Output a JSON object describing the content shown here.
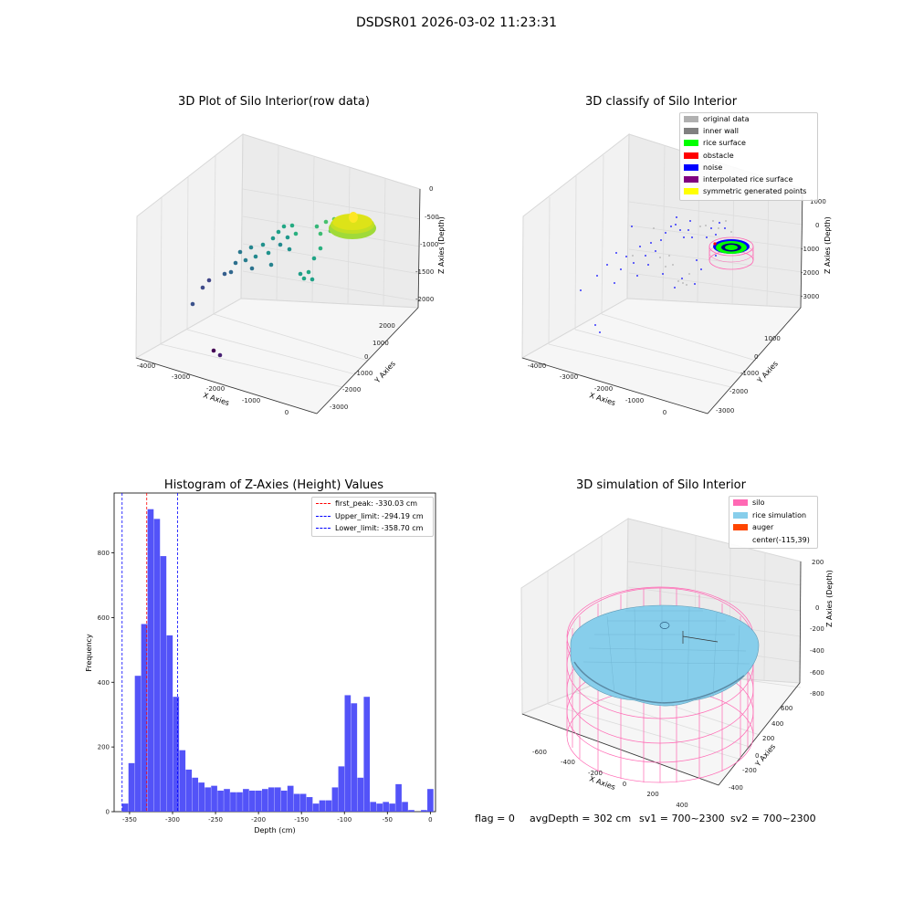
{
  "figure_title": "DSDSR01 2026-03-02 11:23:31",
  "status_line": {
    "flag": "flag = 0",
    "avg_depth": "avgDepth = 302 cm",
    "sv1": "sv1 = 700~2300",
    "sv2": "sv2 = 700~2300"
  },
  "chart_data": [
    {
      "type": "scatter",
      "projection": "3d",
      "title": "3D Plot of Silo Interior(row data)",
      "xlabel": "X Axies",
      "ylabel": "Y Axies",
      "zlabel": "Z Axies (Depth)",
      "xticks": [
        "-4000",
        "-3000",
        "-2000",
        "-1000",
        "0"
      ],
      "yticks": [
        "2000",
        "1000",
        "0",
        "-1000",
        "-2000",
        "-3000"
      ],
      "zticks": [
        "0",
        "-500",
        "-1000",
        "-1500",
        "-2000"
      ],
      "colormap": "viridis",
      "grid": true
    },
    {
      "type": "scatter",
      "projection": "3d",
      "title": "3D classify of Silo Interior",
      "xlabel": "X Axies",
      "ylabel": "Y Axies",
      "zlabel": "Z Axies (Depth)",
      "xticks": [
        "-4000",
        "-3000",
        "-2000",
        "-1000",
        "0"
      ],
      "yticks": [
        "1000",
        "0",
        "-1000",
        "-2000",
        "-3000"
      ],
      "zticks": [
        "1000",
        "0",
        "-1000",
        "-2000",
        "-3000"
      ],
      "legend_position": "top-right",
      "legend": [
        {
          "label": "original data",
          "color": "#b0b0b0"
        },
        {
          "label": "inner wall",
          "color": "#808080"
        },
        {
          "label": "rice surface",
          "color": "#00ff00"
        },
        {
          "label": "obstacle",
          "color": "#ff0000"
        },
        {
          "label": "noise",
          "color": "#0000ff"
        },
        {
          "label": "interpolated rice surface",
          "color": "#800080"
        },
        {
          "label": "symmetric generated points",
          "color": "#ffff00"
        }
      ],
      "grid": true
    },
    {
      "type": "bar",
      "subtype": "histogram",
      "title": "Histogram of Z-Axies (Height) Values",
      "xlabel": "Depth (cm)",
      "ylabel": "Frequency",
      "xlim": [
        -368,
        6
      ],
      "ylim": [
        0,
        985
      ],
      "xticks": [
        -350,
        -300,
        -250,
        -200,
        -150,
        -100,
        -50,
        0
      ],
      "yticks": [
        0,
        200,
        400,
        600,
        800
      ],
      "bar_color": "#4a4af8",
      "bin_edges": [
        -358.7,
        -351.3,
        -343.9,
        -336.5,
        -329.1,
        -321.7,
        -314.3,
        -306.9,
        -299.5,
        -292.1,
        -284.7,
        -277.3,
        -269.9,
        -262.5,
        -255.1,
        -247.7,
        -240.3,
        -232.9,
        -225.5,
        -218.1,
        -210.7,
        -203.3,
        -195.9,
        -188.5,
        -181.1,
        -173.7,
        -166.3,
        -158.9,
        -151.5,
        -144.1,
        -136.7,
        -129.3,
        -121.9,
        -114.5,
        -107.1,
        -99.7,
        -92.3,
        -84.9,
        -77.5,
        -70.1,
        -62.7,
        -55.3,
        -47.9,
        -40.5,
        -33.1,
        -25.7,
        -18.3,
        -10.9,
        -3.5,
        3.9
      ],
      "counts": [
        25,
        150,
        420,
        580,
        935,
        905,
        790,
        545,
        355,
        190,
        130,
        105,
        90,
        75,
        80,
        65,
        70,
        60,
        60,
        70,
        65,
        65,
        70,
        75,
        75,
        65,
        80,
        55,
        55,
        45,
        25,
        35,
        35,
        75,
        140,
        360,
        335,
        105,
        355,
        30,
        25,
        30,
        25,
        85,
        30,
        5,
        0,
        5,
        70
      ],
      "reference_lines": [
        {
          "label": "first_peak: -330.03 cm",
          "x": -330.03,
          "color": "#ff0000"
        },
        {
          "label": "Upper_limit: -294.19 cm",
          "x": -294.19,
          "color": "#0000ff"
        },
        {
          "label": "Lower_limit: -358.70 cm",
          "x": -358.7,
          "color": "#0000ff"
        }
      ],
      "legend_position": "top-right",
      "grid": false
    },
    {
      "type": "surface",
      "projection": "3d",
      "title": "3D simulation of Silo Interior",
      "xlabel": "X Axies",
      "ylabel": "Y Axies",
      "zlabel": "Z Axies (Depth)",
      "xticks": [
        "-600",
        "-400",
        "-200",
        "0",
        "200",
        "400"
      ],
      "yticks": [
        "600",
        "400",
        "200",
        "0",
        "-200",
        "-400"
      ],
      "zticks": [
        "200",
        "0",
        "-200",
        "-400",
        "-600",
        "-800"
      ],
      "legend_position": "top-right",
      "legend": [
        {
          "label": "silo",
          "color": "#ff69b4"
        },
        {
          "label": "rice simulation",
          "color": "#87ceeb"
        },
        {
          "label": "auger",
          "color": "#ff4500"
        },
        {
          "label": "center(-115,39)",
          "color": ""
        }
      ],
      "grid": true
    }
  ]
}
